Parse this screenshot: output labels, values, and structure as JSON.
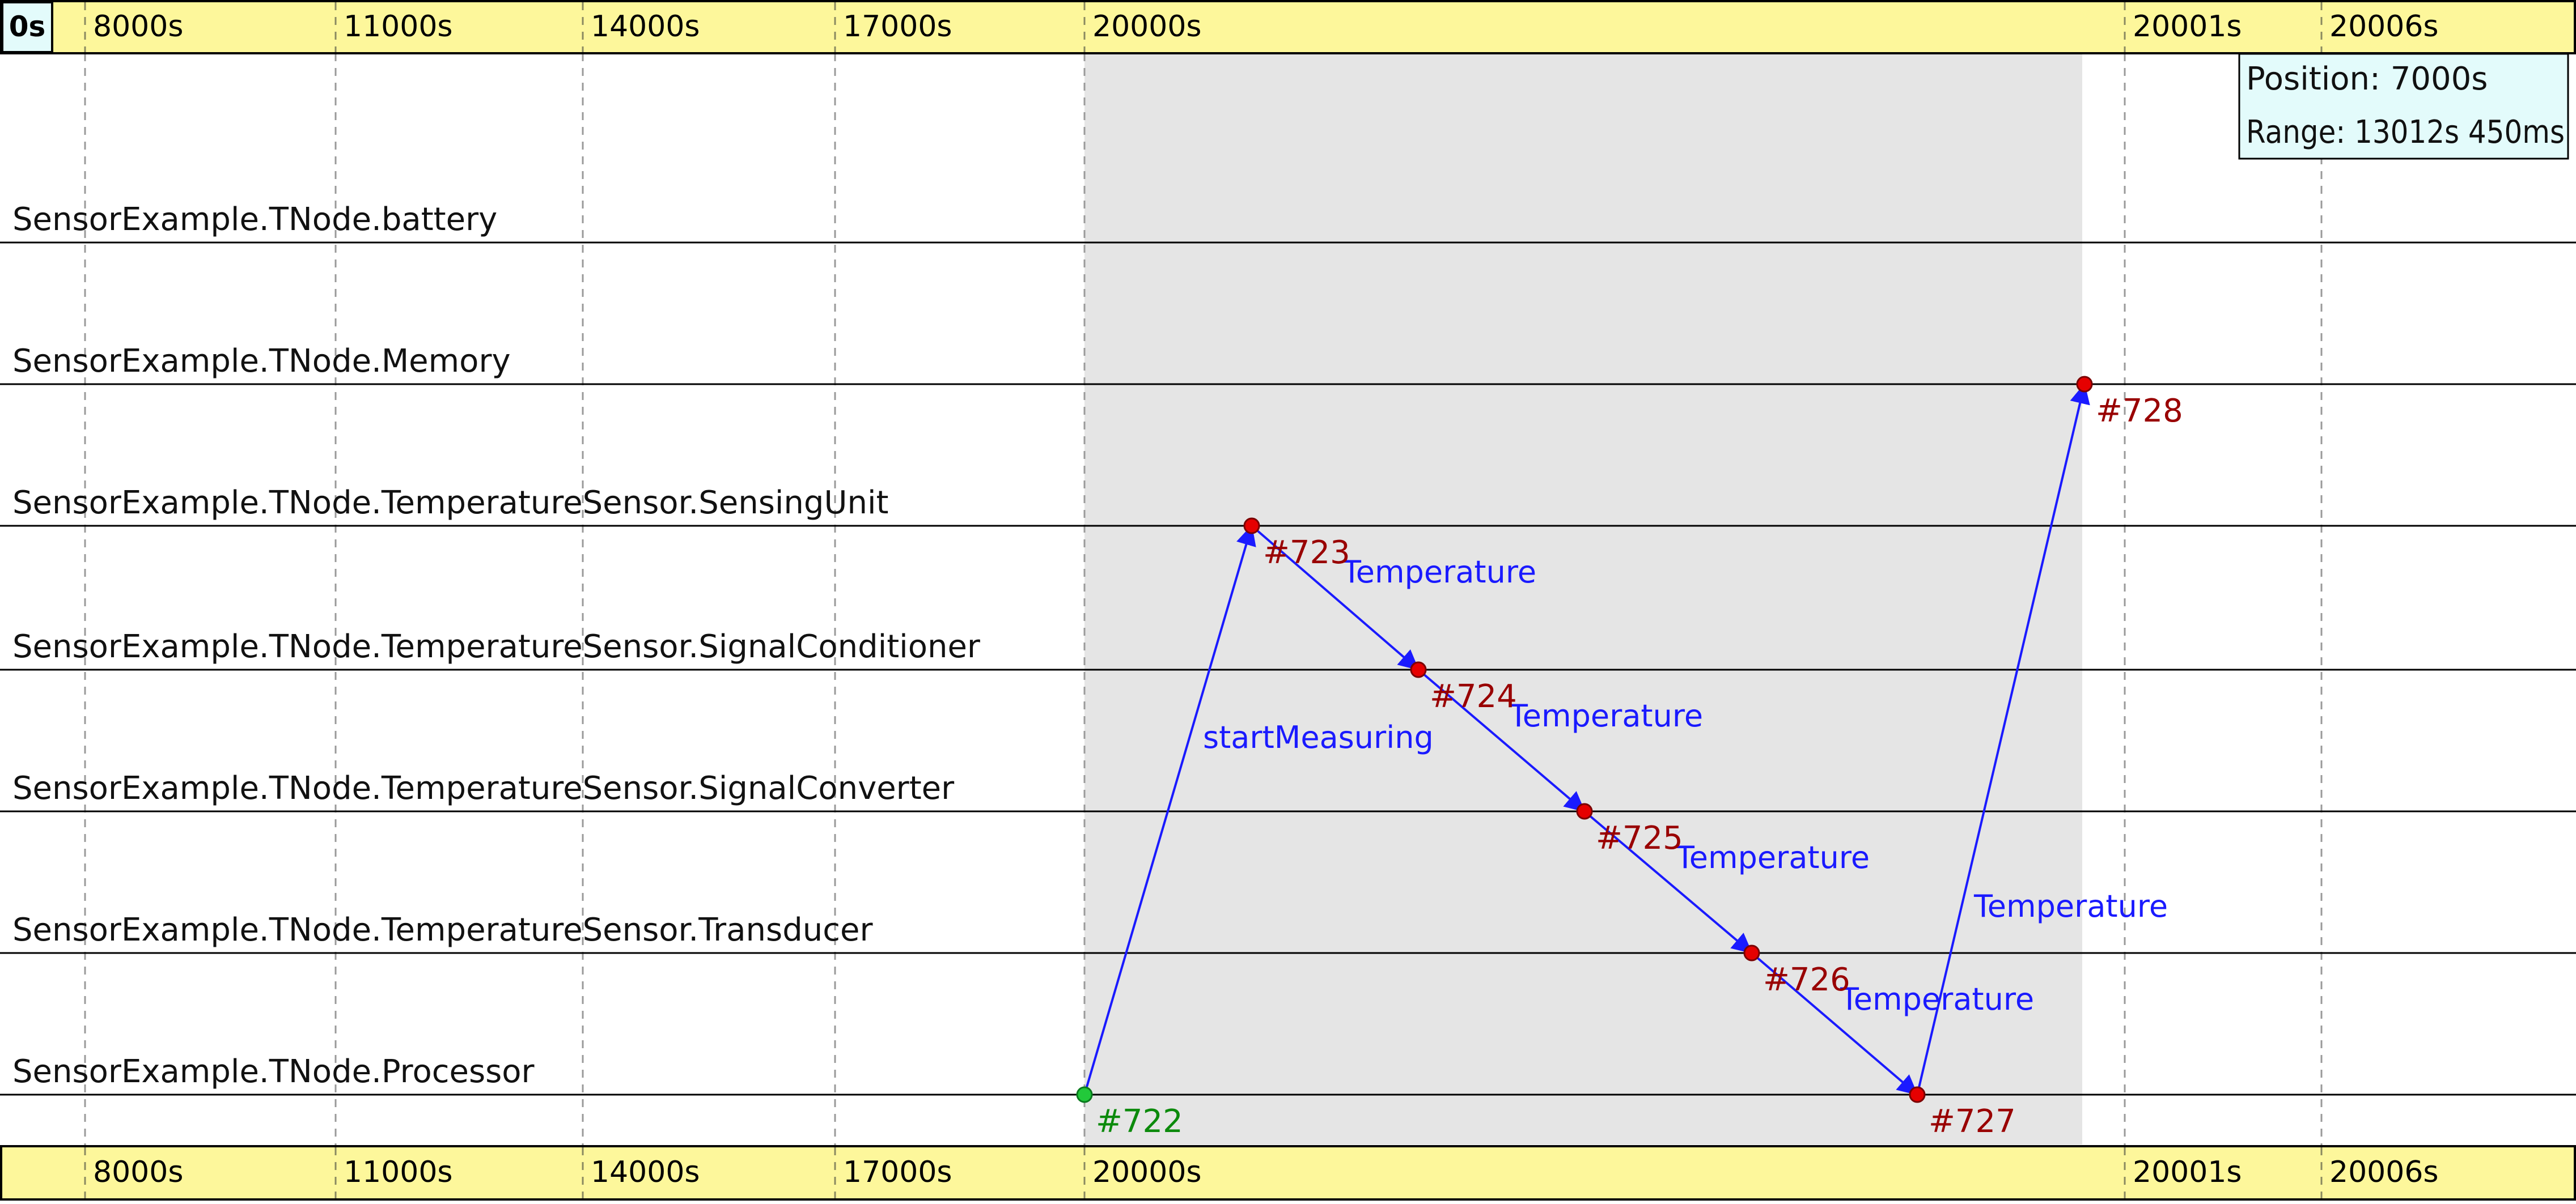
{
  "axis": {
    "origin_label": "0s",
    "ticks": [
      "8000s",
      "11000s",
      "14000s",
      "17000s",
      "20000s",
      "20001s",
      "20006s"
    ]
  },
  "info_box": {
    "position": "Position: 7000s",
    "range": "Range: 13012s 450ms"
  },
  "lanes": [
    "SensorExample.TNode.battery",
    "SensorExample.TNode.Memory",
    "SensorExample.TNode.TemperatureSensor.SensingUnit",
    "SensorExample.TNode.TemperatureSensor.SignalConditioner",
    "SensorExample.TNode.TemperatureSensor.SignalConverter",
    "SensorExample.TNode.TemperatureSensor.Transducer",
    "SensorExample.TNode.Processor"
  ],
  "events": [
    {
      "id": "#722",
      "lane": 6,
      "kind": "start"
    },
    {
      "id": "#723",
      "lane": 2,
      "kind": "event"
    },
    {
      "id": "#724",
      "lane": 3,
      "kind": "event"
    },
    {
      "id": "#725",
      "lane": 4,
      "kind": "event"
    },
    {
      "id": "#726",
      "lane": 5,
      "kind": "event"
    },
    {
      "id": "#727",
      "lane": 6,
      "kind": "event"
    },
    {
      "id": "#728",
      "lane": 1,
      "kind": "event"
    }
  ],
  "messages": [
    {
      "from": "#722",
      "to": "#723",
      "label": "startMeasuring"
    },
    {
      "from": "#723",
      "to": "#724",
      "label": "Temperature"
    },
    {
      "from": "#724",
      "to": "#725",
      "label": "Temperature"
    },
    {
      "from": "#725",
      "to": "#726",
      "label": "Temperature"
    },
    {
      "from": "#726",
      "to": "#727",
      "label": "Temperature"
    },
    {
      "from": "#727",
      "to": "#728",
      "label": "Temperature"
    }
  ],
  "colors": {
    "axis_bg": "#fdf79b",
    "info_bg": "#e3fbfb",
    "selection": "#e5e5e5",
    "arrow": "#1a1aff",
    "event": "#e60000",
    "event_label": "#990000",
    "start_event": "#22c93a",
    "start_label": "#0c8a0c"
  }
}
